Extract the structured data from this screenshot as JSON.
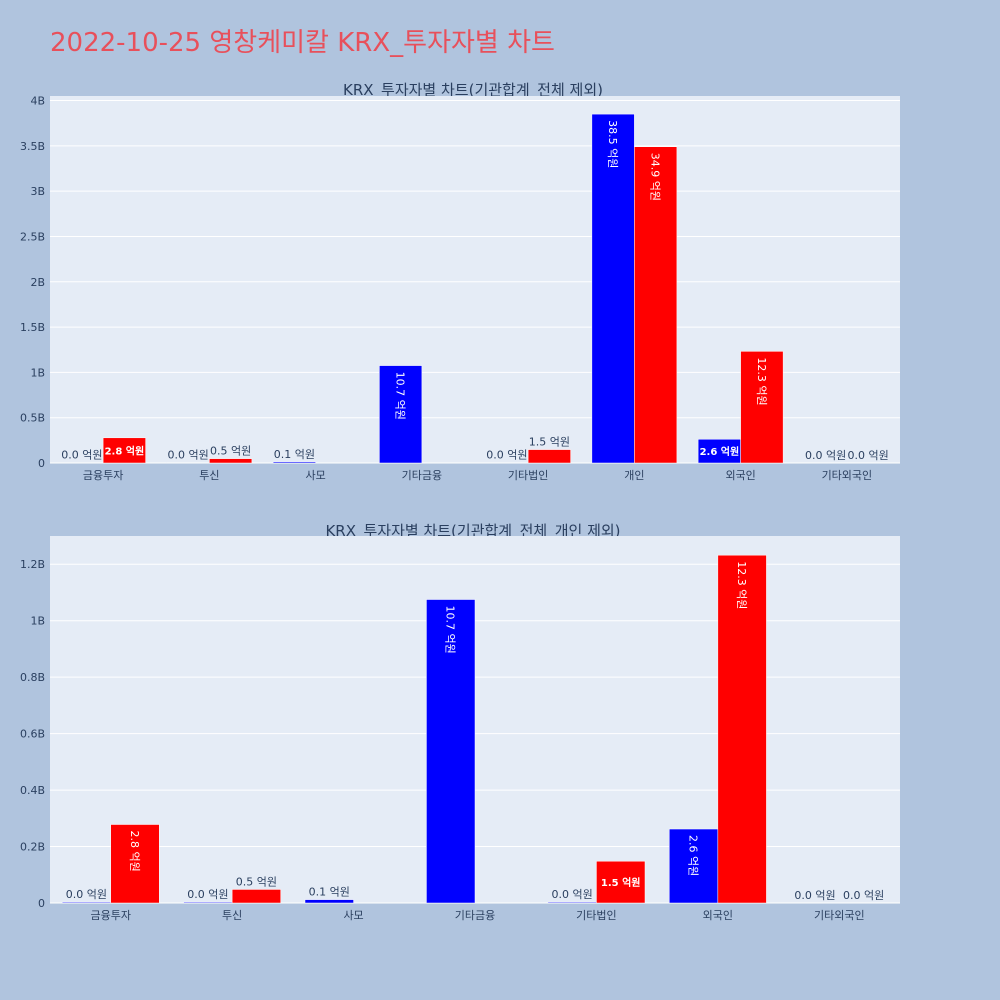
{
  "title": "2022-10-25 영창케미칼 KRX_투자자별 차트",
  "colors": {
    "buy": "#0000ff",
    "sell": "#ff0000",
    "plot_bg": "#e5ecf6",
    "paper_bg": "#b0c4de",
    "title": "#e8505b"
  },
  "chart_data": [
    {
      "type": "bar",
      "title": "KRX_투자자별 차트(기관합계_전체 제외)",
      "categories": [
        "금융투자",
        "투신",
        "사모",
        "기타금융",
        "기타법인",
        "개인",
        "외국인",
        "기타외국인"
      ],
      "series": [
        {
          "values": [
            0.003,
            0.003,
            0.012,
            1.075,
            0.003,
            3.85,
            0.262,
            0.0
          ],
          "labels": [
            "0.0 억원",
            "0.0 억원",
            "0.1 억원",
            "10.7 억원",
            "0.0 억원",
            "38.5 억원",
            "2.6 억원",
            "0.0 억원"
          ]
        },
        {
          "values": [
            0.278,
            0.048,
            0.0,
            0.0,
            0.148,
            3.49,
            1.232,
            0.0
          ],
          "labels": [
            "2.8 억원",
            "0.5 억원",
            "",
            "",
            "1.5 억원",
            "34.9 억원",
            "12.3 억원",
            "0.0 억원"
          ]
        }
      ],
      "yticks": [
        0,
        0.5,
        1,
        1.5,
        2,
        2.5,
        3,
        3.5,
        4
      ],
      "ytick_labels": [
        "0",
        "0.5B",
        "1B",
        "1.5B",
        "2B",
        "2.5B",
        "3B",
        "3.5B",
        "4B"
      ],
      "ylim": [
        0,
        4.05
      ],
      "grid": true
    },
    {
      "type": "bar",
      "title": "KRX_투자자별 차트(기관합계_전체_개인 제외)",
      "categories": [
        "금융투자",
        "투신",
        "사모",
        "기타금융",
        "기타법인",
        "외국인",
        "기타외국인"
      ],
      "series": [
        {
          "values": [
            0.003,
            0.003,
            0.012,
            1.075,
            0.003,
            0.262,
            0.0
          ],
          "labels": [
            "0.0 억원",
            "0.0 억원",
            "0.1 억원",
            "10.7 억원",
            "0.0 억원",
            "2.6 억원",
            "0.0 억원"
          ]
        },
        {
          "values": [
            0.278,
            0.048,
            0.0,
            0.0,
            0.148,
            1.232,
            0.0
          ],
          "labels": [
            "2.8 억원",
            "0.5 억원",
            "",
            "",
            "1.5 억원",
            "12.3 억원",
            "0.0 억원"
          ]
        }
      ],
      "yticks": [
        0,
        0.2,
        0.4,
        0.6,
        0.8,
        1.0,
        1.2
      ],
      "ytick_labels": [
        "0",
        "0.2B",
        "0.4B",
        "0.6B",
        "0.8B",
        "1B",
        "1.2B"
      ],
      "ylim": [
        0,
        1.3
      ],
      "grid": true
    }
  ]
}
